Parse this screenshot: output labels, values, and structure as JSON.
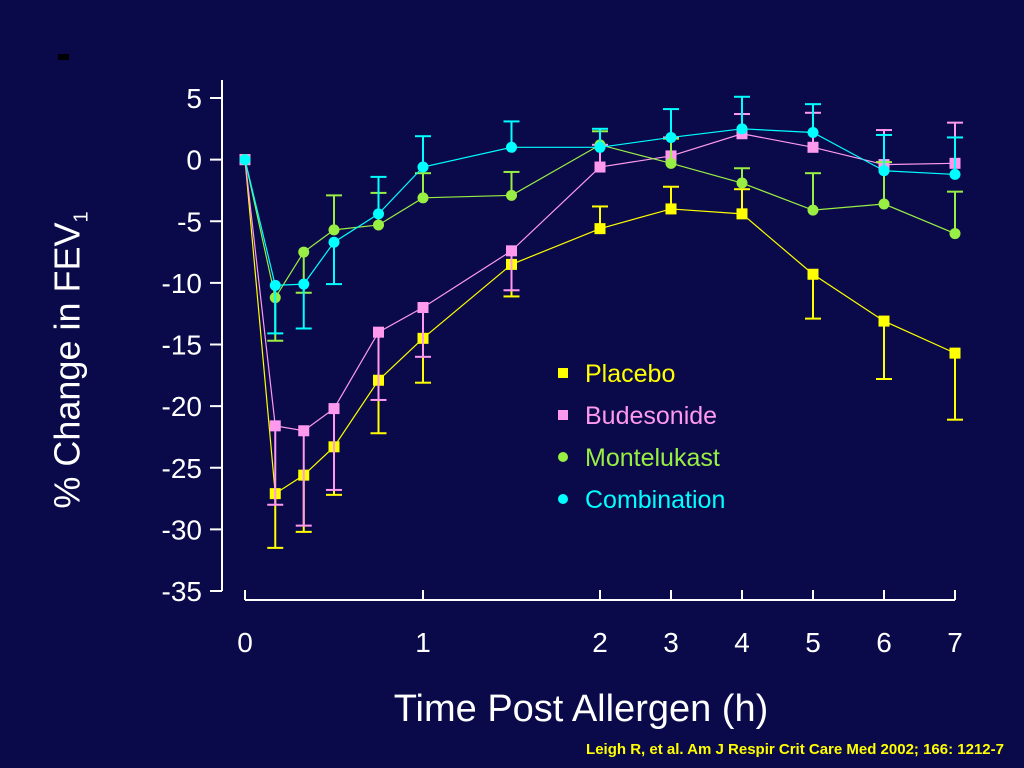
{
  "chart_data": {
    "type": "line",
    "title": "",
    "ylabel": "% Change in FEV",
    "ylabel_subscript": "1",
    "xlabel": "Time Post Allergen (h)",
    "ylim": [
      -35,
      5
    ],
    "yticks": [
      5,
      0,
      -5,
      -10,
      -15,
      -20,
      -25,
      -30,
      -35
    ],
    "xtick_labels": [
      "0",
      "1",
      "2",
      "3",
      "4",
      "5",
      "6",
      "7"
    ],
    "x_axis_note": "Non-linear time axis: first hour expanded (0 to 1 h spans as wide as 1 to 2 h; 2 to 7 h at smaller uniform spacing)",
    "grid": false,
    "legend_position": "center-right",
    "x": [
      0,
      0.17,
      0.33,
      0.5,
      0.75,
      1,
      1.5,
      2,
      3,
      4,
      5,
      6,
      7
    ],
    "series": [
      {
        "name": "Placebo",
        "color": "#ffff00",
        "marker": "square",
        "values": [
          0,
          -27.1,
          -25.6,
          -23.3,
          -17.9,
          -14.5,
          -8.5,
          -5.6,
          -4.0,
          -4.4,
          -9.3,
          -13.1,
          -15.7
        ],
        "error": [
          0,
          4.4,
          4.6,
          3.9,
          4.3,
          3.6,
          2.6,
          1.8,
          1.8,
          2.0,
          3.6,
          4.7,
          5.4
        ]
      },
      {
        "name": "Budesonide",
        "color": "#ff99ee",
        "marker": "square",
        "values": [
          0,
          -21.6,
          -22.0,
          -20.2,
          -14.0,
          -12.0,
          -7.4,
          -0.6,
          0.3,
          2.1,
          1.0,
          -0.4,
          -0.3
        ],
        "error": [
          0,
          6.4,
          7.7,
          6.6,
          5.5,
          4.0,
          3.2,
          1.8,
          1.5,
          1.6,
          2.8,
          2.8,
          3.3
        ]
      },
      {
        "name": "Montelukast",
        "color": "#99ee44",
        "marker": "circle",
        "values": [
          0,
          -11.2,
          -7.5,
          -5.7,
          -5.3,
          -3.1,
          -2.9,
          1.2,
          -0.3,
          -1.9,
          -4.1,
          -3.6,
          -6.0
        ],
        "error": [
          0,
          3.5,
          3.3,
          2.8,
          2.6,
          2.0,
          1.9,
          1.1,
          2.0,
          1.2,
          3.0,
          3.4,
          3.4
        ]
      },
      {
        "name": "Combination",
        "color": "#00ffff",
        "marker": "circle",
        "values": [
          0,
          -10.2,
          -10.1,
          -6.7,
          -4.4,
          -0.6,
          1.0,
          1.0,
          1.8,
          2.5,
          2.2,
          -0.9,
          -1.2
        ],
        "error": [
          0,
          3.9,
          3.6,
          3.4,
          3.0,
          2.5,
          2.1,
          1.5,
          2.3,
          2.6,
          2.3,
          2.9,
          3.0
        ]
      }
    ]
  },
  "citation": "Leigh R, et al.  Am J Respir Crit Care Med 2002; 166: 1212-7"
}
